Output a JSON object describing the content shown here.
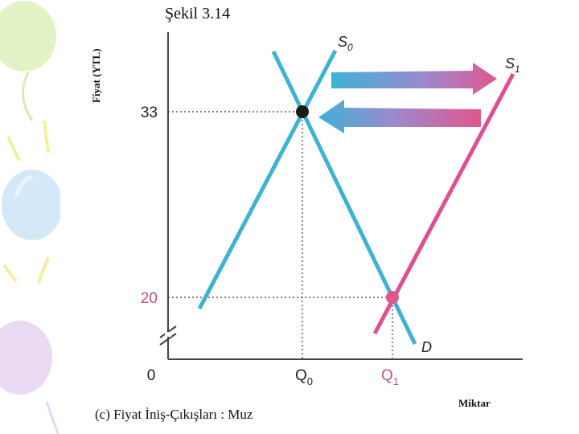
{
  "title": "Şekil 3.14",
  "caption": "(c) Fiyat İniş-Çıkışları : Muz",
  "chart_data": {
    "type": "line",
    "ylabel": "Fiyat (YTL)",
    "xlabel": "Miktar",
    "y_ticks": [
      {
        "label": "33",
        "value": 33,
        "color": "#222222"
      },
      {
        "label": "20",
        "value": 20,
        "color": "#c54d80"
      }
    ],
    "x_ticks": [
      {
        "label": "0",
        "color": "#222222"
      },
      {
        "label": "Q",
        "sub": "0",
        "color": "#222222"
      },
      {
        "label": "Q",
        "sub": "1",
        "color": "#c54d80"
      }
    ],
    "series": [
      {
        "name": "S",
        "sub": "0",
        "color": "#3fb2d4"
      },
      {
        "name": "S",
        "sub": "1",
        "color": "#dd4f92"
      },
      {
        "name": "D",
        "sub": "",
        "color": "#3fb2d4"
      }
    ],
    "equilibria": [
      {
        "price": 33,
        "quantity": "Q0",
        "color": "#1a1a1a"
      },
      {
        "price": 20,
        "quantity": "Q1",
        "color": "#e0578f"
      }
    ],
    "arrows": [
      {
        "direction": "right",
        "from": "#3fb2d4",
        "to": "#e0578f"
      },
      {
        "direction": "left",
        "from": "#3fb2d4",
        "to": "#e0578f"
      }
    ],
    "axis_break": true,
    "grid": false
  }
}
